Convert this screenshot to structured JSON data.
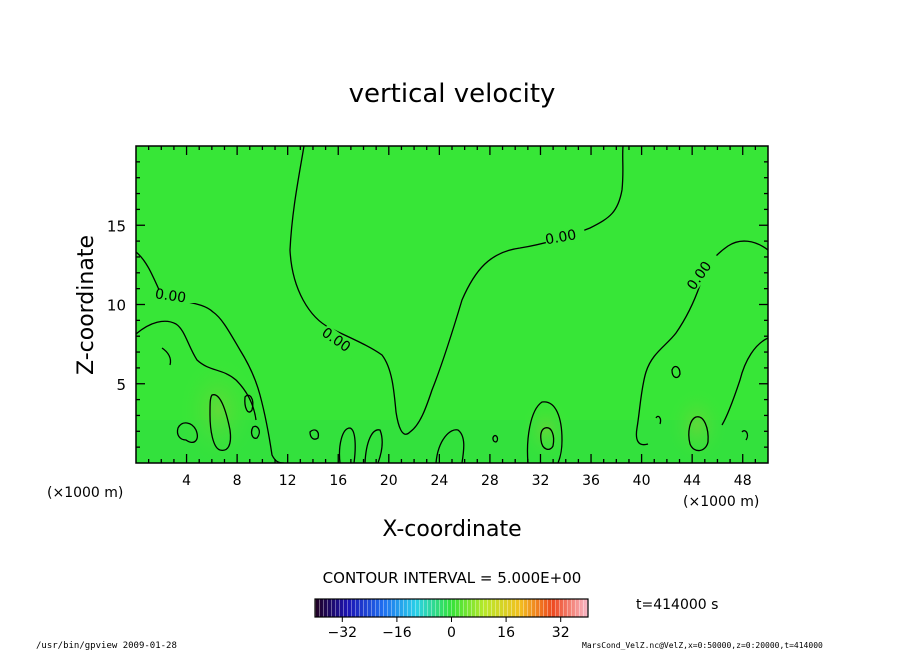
{
  "chart_data": {
    "type": "heatmap",
    "title": "vertical velocity",
    "xlabel": "X-coordinate",
    "ylabel": "Z-coordinate",
    "x_unit": "(×1000 m)",
    "y_unit": "(×1000 m)",
    "xlim": [
      0,
      50
    ],
    "ylim": [
      0,
      20
    ],
    "xticks": [
      4,
      8,
      12,
      16,
      20,
      24,
      28,
      32,
      36,
      40,
      44,
      48
    ],
    "yticks": [
      5,
      10,
      15
    ],
    "contour_interval_text": "CONTOUR INTERVAL = 5.000E+00",
    "contour_labels": [
      "0.00",
      "0.00",
      "0.00",
      "0.00"
    ],
    "colorbar": {
      "min": -40,
      "max": 40,
      "ticks": [
        -32,
        -16,
        0,
        16,
        32
      ],
      "colormap": "rainbow"
    },
    "background_color": "#37e637",
    "updraft_cores": [
      {
        "x": 6.6,
        "z": 2.5,
        "level": 5
      },
      {
        "x": 32.6,
        "z": 1.5,
        "level": 5
      },
      {
        "x": 44.8,
        "z": 1.8,
        "level": 5
      }
    ]
  },
  "time_label": "t=414000 s",
  "footer": {
    "left": "/usr/bin/gpview  2009-01-28",
    "right": "MarsCond_VelZ.nc@VelZ,x=0:50000,z=0:20000,t=414000"
  }
}
